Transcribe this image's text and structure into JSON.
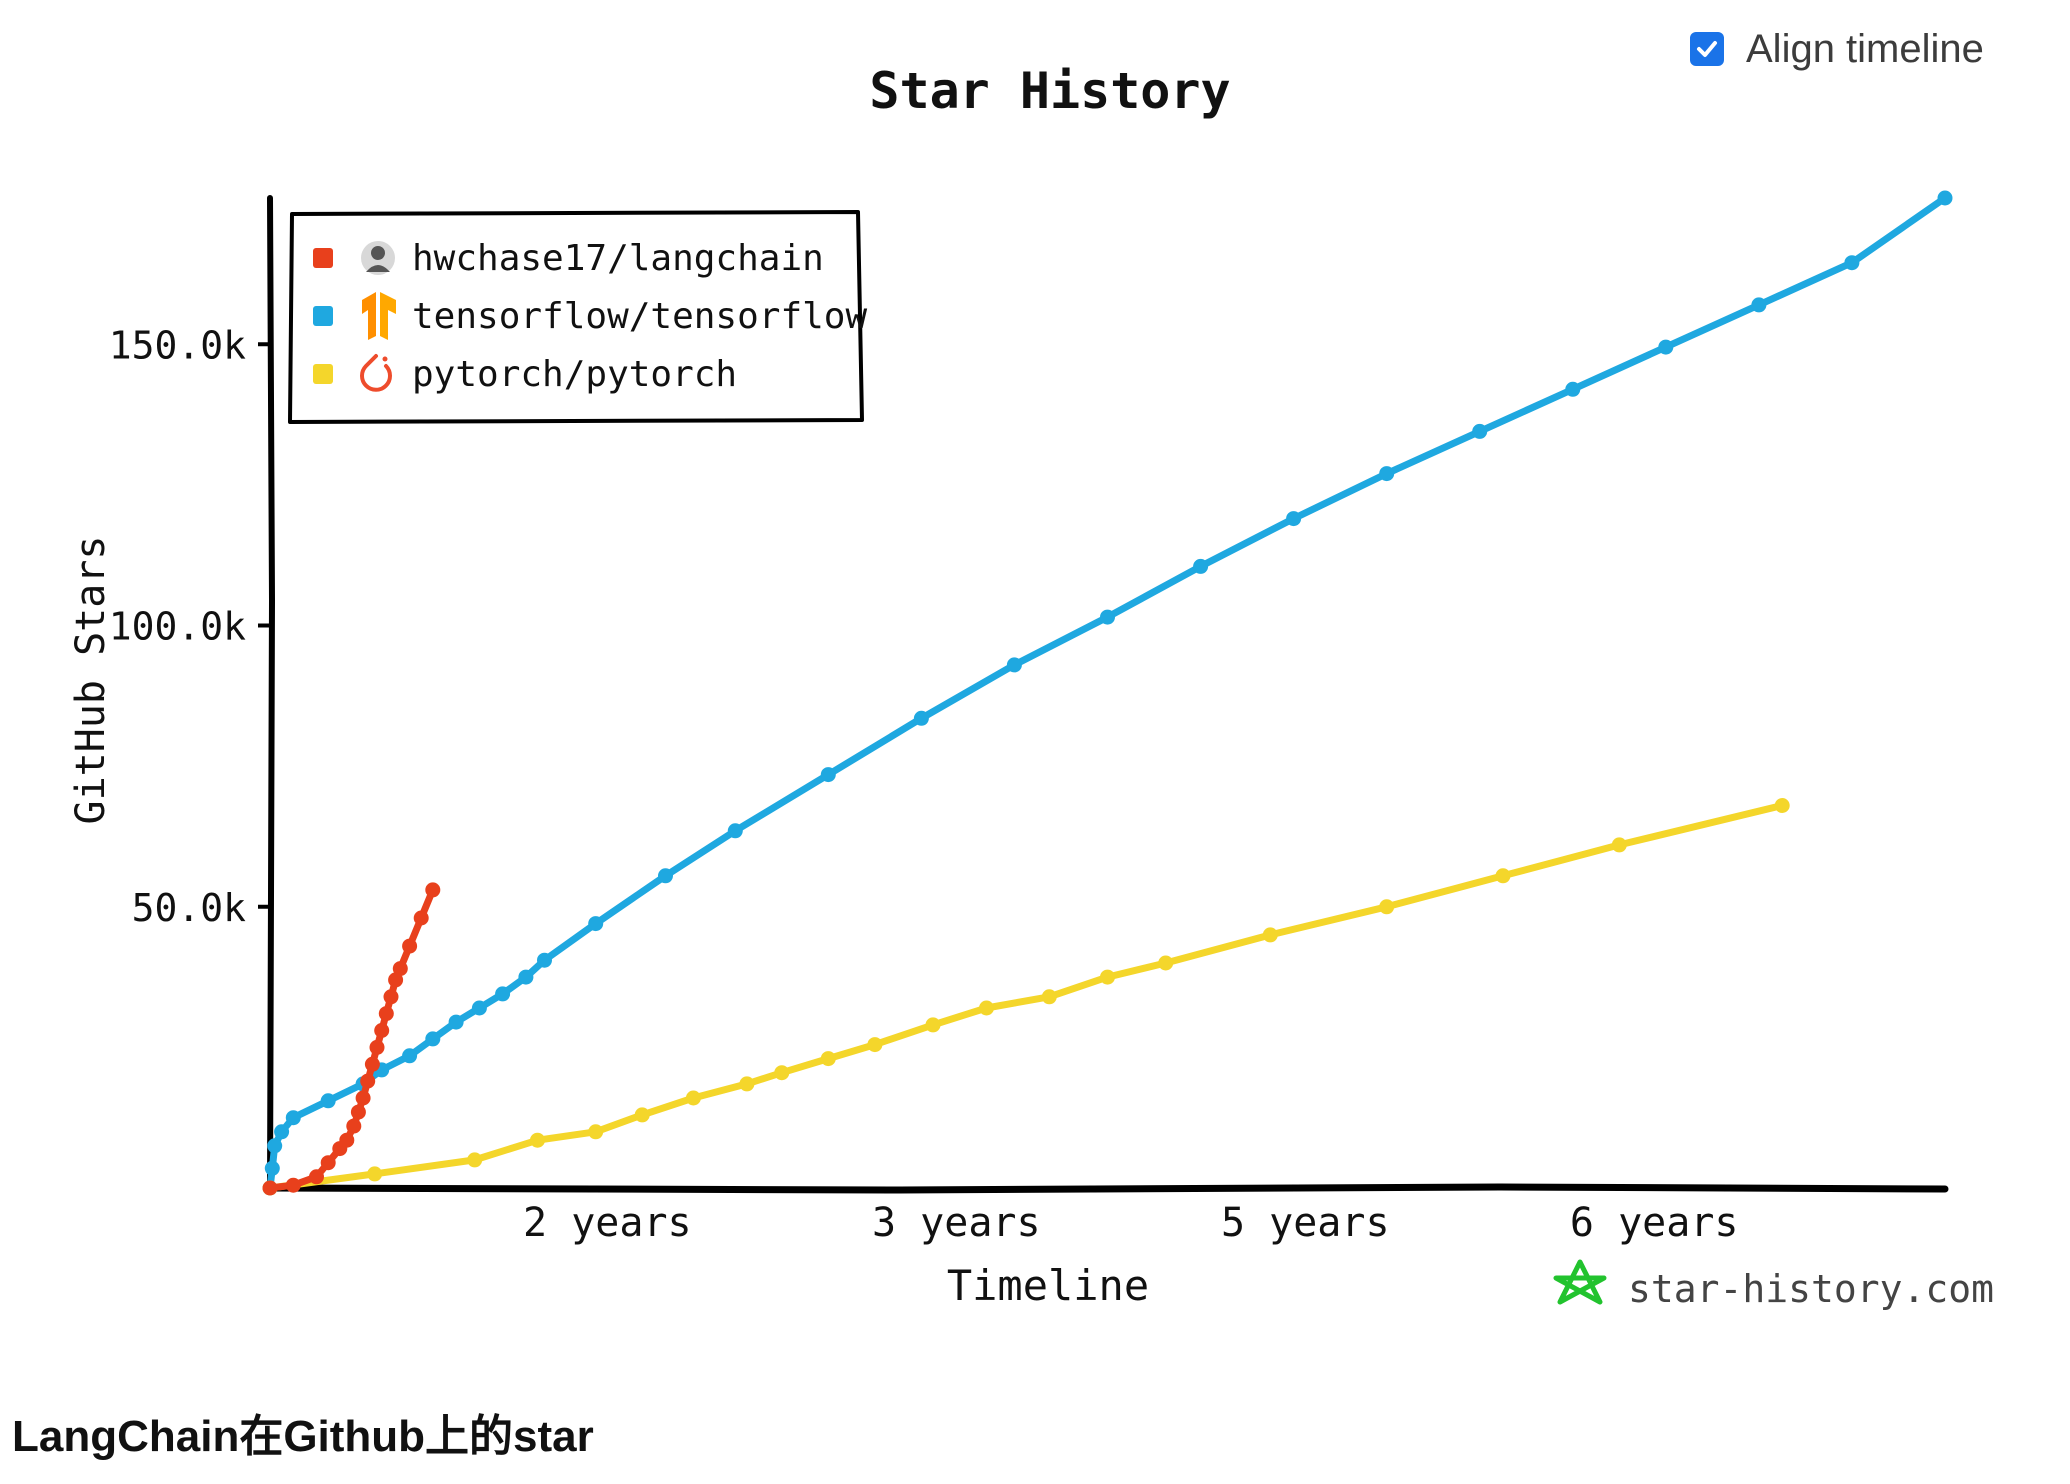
{
  "toolbar": {
    "align_timeline_label": "Align timeline",
    "align_timeline_checked": true
  },
  "caption": "LangChain在Github上的star",
  "watermark": "star-history.com",
  "chart_data": {
    "type": "line",
    "title": "Star History",
    "xlabel": "Timeline",
    "ylabel": "GitHub Stars",
    "xlim": [
      0,
      7.2
    ],
    "ylim": [
      0,
      176000
    ],
    "x_ticks": [
      {
        "value": 1.45,
        "label": "2 years"
      },
      {
        "value": 2.95,
        "label": "3 years"
      },
      {
        "value": 4.45,
        "label": "5 years"
      },
      {
        "value": 5.95,
        "label": "6 years"
      }
    ],
    "y_ticks": [
      {
        "value": 50000,
        "label": "50.0k"
      },
      {
        "value": 100000,
        "label": "100.0k"
      },
      {
        "value": 150000,
        "label": "150.0k"
      }
    ],
    "grid": false,
    "legend_position": "top-left",
    "series": [
      {
        "name": "hwchase17/langchain",
        "color": "#e8401c",
        "icon": "avatar-icon",
        "points": [
          [
            0,
            0
          ],
          [
            0.1,
            500
          ],
          [
            0.2,
            2000
          ],
          [
            0.25,
            4500
          ],
          [
            0.3,
            7000
          ],
          [
            0.33,
            8500
          ],
          [
            0.36,
            11000
          ],
          [
            0.38,
            13500
          ],
          [
            0.4,
            16000
          ],
          [
            0.42,
            19000
          ],
          [
            0.44,
            22000
          ],
          [
            0.46,
            25000
          ],
          [
            0.48,
            28000
          ],
          [
            0.5,
            31000
          ],
          [
            0.52,
            34000
          ],
          [
            0.54,
            37000
          ],
          [
            0.56,
            39000
          ],
          [
            0.6,
            43000
          ],
          [
            0.65,
            48000
          ],
          [
            0.7,
            53000
          ]
        ]
      },
      {
        "name": "tensorflow/tensorflow",
        "color": "#1fa8e0",
        "icon": "tensorflow-icon",
        "points": [
          [
            0,
            0
          ],
          [
            0.01,
            3500
          ],
          [
            0.02,
            7500
          ],
          [
            0.05,
            10000
          ],
          [
            0.1,
            12500
          ],
          [
            0.25,
            15500
          ],
          [
            0.4,
            18500
          ],
          [
            0.48,
            21000
          ],
          [
            0.6,
            23500
          ],
          [
            0.7,
            26500
          ],
          [
            0.8,
            29500
          ],
          [
            0.9,
            32000
          ],
          [
            1.0,
            34500
          ],
          [
            1.1,
            37500
          ],
          [
            1.18,
            40500
          ],
          [
            1.4,
            47000
          ],
          [
            1.7,
            55500
          ],
          [
            2.0,
            63500
          ],
          [
            2.4,
            73500
          ],
          [
            2.8,
            83500
          ],
          [
            3.2,
            93000
          ],
          [
            3.6,
            101500
          ],
          [
            4.0,
            110500
          ],
          [
            4.4,
            119000
          ],
          [
            4.8,
            127000
          ],
          [
            5.2,
            134500
          ],
          [
            5.6,
            142000
          ],
          [
            6.0,
            149500
          ],
          [
            6.4,
            157000
          ],
          [
            6.8,
            164500
          ],
          [
            7.2,
            176000
          ]
        ]
      },
      {
        "name": "pytorch/pytorch",
        "color": "#f4d62b",
        "icon": "pytorch-icon",
        "points": [
          [
            0,
            0
          ],
          [
            0.45,
            2500
          ],
          [
            0.88,
            5000
          ],
          [
            1.15,
            8500
          ],
          [
            1.4,
            10000
          ],
          [
            1.6,
            13000
          ],
          [
            1.82,
            16000
          ],
          [
            2.05,
            18500
          ],
          [
            2.2,
            20500
          ],
          [
            2.4,
            23000
          ],
          [
            2.6,
            25500
          ],
          [
            2.85,
            29000
          ],
          [
            3.08,
            32000
          ],
          [
            3.35,
            34000
          ],
          [
            3.6,
            37500
          ],
          [
            3.85,
            40000
          ],
          [
            4.3,
            45000
          ],
          [
            4.8,
            50000
          ],
          [
            5.3,
            55500
          ],
          [
            5.8,
            61000
          ],
          [
            6.5,
            68000
          ]
        ]
      }
    ]
  }
}
